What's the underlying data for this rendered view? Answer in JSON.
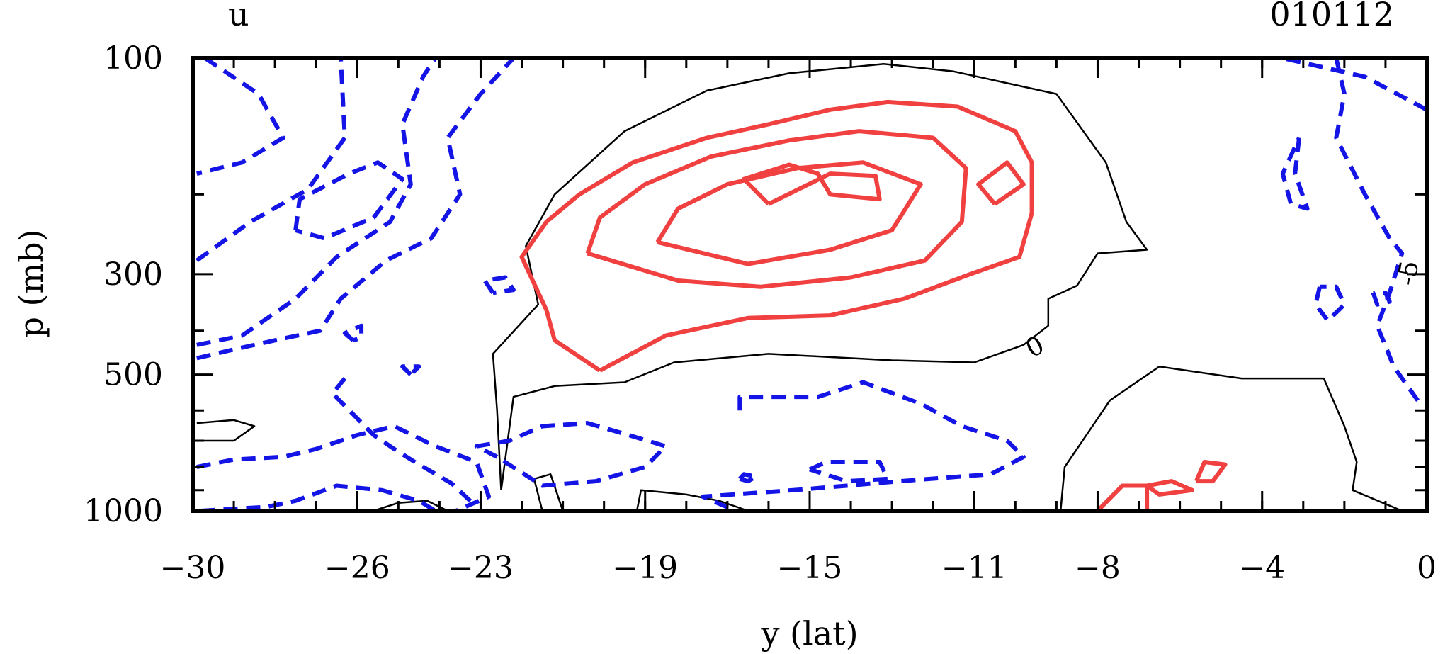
{
  "chart_data": {
    "type": "contour",
    "variable": "u",
    "date_label": "010112",
    "xlabel": "y (lat)",
    "ylabel": "p (mb)",
    "xlim": [
      -30,
      0
    ],
    "ylim": [
      1000,
      100
    ],
    "y_scale": "log",
    "x_ticks": [
      "-30",
      "-26",
      "-23",
      "-19",
      "-15",
      "-11",
      "-8",
      "-4",
      "0"
    ],
    "y_ticks": [
      "100",
      "300",
      "500",
      "1000"
    ],
    "contour_labels": [
      "0",
      "-5"
    ],
    "styles": {
      "positive": {
        "color": "#f04040",
        "dash": "solid"
      },
      "zero": {
        "color": "#000000",
        "dash": "solid"
      },
      "negative": {
        "color": "#1414e6",
        "dash": "dashed"
      }
    },
    "contours": [
      {
        "sign": "zero",
        "points": [
          [
            -22.5,
            900
          ],
          [
            -22.6,
            600
          ],
          [
            -22.7,
            450
          ],
          [
            -21.6,
            350
          ],
          [
            -21.9,
            260
          ],
          [
            -21.2,
            200
          ],
          [
            -19.5,
            145
          ],
          [
            -17.5,
            118
          ],
          [
            -15.5,
            108
          ],
          [
            -13.2,
            103
          ],
          [
            -11.5,
            107
          ],
          [
            -9,
            120
          ],
          [
            -7.8,
            170
          ],
          [
            -7.3,
            230
          ],
          [
            -6.8,
            265
          ],
          [
            -8,
            270
          ],
          [
            -8.5,
            318
          ],
          [
            -9.2,
            340
          ],
          [
            -9.2,
            390
          ],
          [
            -9.8,
            430
          ],
          [
            -11,
            470
          ],
          [
            -13,
            465
          ],
          [
            -16,
            450
          ],
          [
            -18.3,
            470
          ],
          [
            -19.5,
            520
          ],
          [
            -21.2,
            530
          ],
          [
            -22.2,
            560
          ],
          [
            -22.5,
            900
          ]
        ]
      },
      {
        "sign": "zero",
        "points": [
          [
            -8.9,
            1000
          ],
          [
            -8.8,
            800
          ],
          [
            -7.7,
            570
          ],
          [
            -6.5,
            480
          ],
          [
            -4.5,
            510
          ],
          [
            -2.5,
            510
          ],
          [
            -2,
            650
          ],
          [
            -1.7,
            780
          ],
          [
            -1.8,
            900
          ],
          [
            -0.6,
            1000
          ]
        ]
      },
      {
        "sign": "zero",
        "points": [
          [
            -29.9,
            640
          ],
          [
            -29,
            630
          ],
          [
            -28.5,
            650
          ],
          [
            -29,
            700
          ],
          [
            -29.9,
            700
          ]
        ]
      },
      {
        "sign": "zero",
        "points": [
          [
            -21.5,
            1000
          ],
          [
            -21.7,
            850
          ],
          [
            -21.3,
            830
          ],
          [
            -21,
            1000
          ]
        ]
      },
      {
        "sign": "zero",
        "points": [
          [
            -19.2,
            1000
          ],
          [
            -19.1,
            900
          ],
          [
            -18,
            920
          ],
          [
            -17.2,
            950
          ],
          [
            -16.5,
            1000
          ]
        ]
      },
      {
        "sign": "zero",
        "points": [
          [
            -25.6,
            1000
          ],
          [
            -25,
            960
          ],
          [
            -24.3,
            950
          ],
          [
            -23.8,
            1000
          ]
        ]
      },
      {
        "sign": "positive",
        "points": [
          [
            -20.1,
            490
          ],
          [
            -21.2,
            420
          ],
          [
            -21.4,
            360
          ],
          [
            -22,
            275
          ],
          [
            -21.4,
            230
          ],
          [
            -20.6,
            200
          ],
          [
            -19.3,
            170
          ],
          [
            -17.5,
            150
          ],
          [
            -16,
            140
          ],
          [
            -14.5,
            130
          ],
          [
            -13.1,
            125
          ],
          [
            -11.4,
            128
          ],
          [
            -10,
            145
          ],
          [
            -9.6,
            170
          ],
          [
            -9.6,
            220
          ],
          [
            -9.9,
            275
          ],
          [
            -11.1,
            300
          ],
          [
            -12.7,
            340
          ],
          [
            -14.5,
            370
          ],
          [
            -16.5,
            375
          ],
          [
            -18.5,
            410
          ],
          [
            -20.1,
            490
          ]
        ]
      },
      {
        "sign": "positive",
        "points": [
          [
            -20.4,
            270
          ],
          [
            -20.1,
            225
          ],
          [
            -19,
            190
          ],
          [
            -17.4,
            165
          ],
          [
            -15.5,
            152
          ],
          [
            -13.8,
            145
          ],
          [
            -12,
            150
          ],
          [
            -11.2,
            175
          ],
          [
            -11.3,
            230
          ],
          [
            -12.2,
            280
          ],
          [
            -14,
            305
          ],
          [
            -16.2,
            320
          ],
          [
            -18.2,
            310
          ],
          [
            -20.4,
            270
          ]
        ]
      },
      {
        "sign": "positive",
        "points": [
          [
            -18.7,
            255
          ],
          [
            -18.2,
            215
          ],
          [
            -17,
            190
          ],
          [
            -15.3,
            175
          ],
          [
            -13.7,
            170
          ],
          [
            -12.3,
            190
          ],
          [
            -13,
            240
          ],
          [
            -14.5,
            265
          ],
          [
            -16.5,
            285
          ],
          [
            -18.7,
            255
          ]
        ]
      },
      {
        "sign": "positive",
        "points": [
          [
            -16,
            210
          ],
          [
            -16.6,
            185
          ],
          [
            -15.5,
            172
          ],
          [
            -14.8,
            180
          ],
          [
            -14.5,
            200
          ],
          [
            -13.3,
            205
          ],
          [
            -13.4,
            182
          ],
          [
            -14.5,
            180
          ],
          [
            -16,
            210
          ]
        ]
      },
      {
        "sign": "positive",
        "points": [
          [
            -10.5,
            210
          ],
          [
            -10.9,
            190
          ],
          [
            -10.2,
            170
          ],
          [
            -9.8,
            190
          ],
          [
            -10.5,
            210
          ]
        ]
      },
      {
        "sign": "positive",
        "points": [
          [
            -8,
            1000
          ],
          [
            -7.4,
            880
          ],
          [
            -6.8,
            880
          ],
          [
            -6.8,
            1000
          ]
        ]
      },
      {
        "sign": "positive",
        "points": [
          [
            -6.8,
            880
          ],
          [
            -6.2,
            860
          ],
          [
            -5.7,
            900
          ],
          [
            -6.5,
            920
          ],
          [
            -6.8,
            880
          ]
        ]
      },
      {
        "sign": "positive",
        "points": [
          [
            -5.6,
            860
          ],
          [
            -5.4,
            780
          ],
          [
            -4.9,
            790
          ],
          [
            -5.2,
            860
          ],
          [
            -5.6,
            860
          ]
        ]
      },
      {
        "sign": "negative",
        "points": [
          [
            -29.7,
            100
          ],
          [
            -28.4,
            120
          ],
          [
            -27.8,
            150
          ],
          [
            -28.8,
            170
          ],
          [
            -29.9,
            180
          ]
        ]
      },
      {
        "sign": "negative",
        "points": [
          [
            -29.9,
            280
          ],
          [
            -28.6,
            230
          ],
          [
            -27.2,
            195
          ],
          [
            -26.3,
            150
          ],
          [
            -26.4,
            100
          ]
        ]
      },
      {
        "sign": "negative",
        "points": [
          [
            -29.9,
            430
          ],
          [
            -28.8,
            410
          ],
          [
            -27.5,
            340
          ],
          [
            -26.5,
            275
          ],
          [
            -25.2,
            230
          ],
          [
            -24.7,
            190
          ],
          [
            -24.9,
            140
          ],
          [
            -24.4,
            110
          ],
          [
            -24.1,
            100
          ]
        ]
      },
      {
        "sign": "negative",
        "points": [
          [
            -29.9,
            460
          ],
          [
            -29,
            440
          ],
          [
            -28,
            420
          ],
          [
            -26.9,
            400
          ],
          [
            -26.4,
            340
          ],
          [
            -25.3,
            280
          ],
          [
            -24.2,
            250
          ],
          [
            -23.5,
            200
          ],
          [
            -23.8,
            150
          ],
          [
            -23,
            120
          ],
          [
            -22.2,
            100
          ]
        ]
      },
      {
        "sign": "negative",
        "points": [
          [
            -27.5,
            240
          ],
          [
            -27.4,
            205
          ],
          [
            -26.2,
            180
          ],
          [
            -25.5,
            170
          ],
          [
            -24.9,
            185
          ],
          [
            -25.6,
            225
          ],
          [
            -26.8,
            250
          ],
          [
            -27.5,
            240
          ]
        ]
      },
      {
        "sign": "negative",
        "points": [
          [
            -29.9,
            800
          ],
          [
            -29,
            770
          ],
          [
            -27.8,
            760
          ],
          [
            -27,
            730
          ],
          [
            -26,
            680
          ],
          [
            -25.1,
            650
          ],
          [
            -24.1,
            720
          ],
          [
            -23.1,
            780
          ],
          [
            -22.8,
            930
          ],
          [
            -23.6,
            1000
          ]
        ]
      },
      {
        "sign": "negative",
        "points": [
          [
            -26.3,
            510
          ],
          [
            -26.6,
            550
          ],
          [
            -25.6,
            680
          ],
          [
            -25.1,
            730
          ],
          [
            -24.6,
            780
          ],
          [
            -23.7,
            870
          ],
          [
            -23.1,
            980
          ]
        ]
      },
      {
        "sign": "negative",
        "points": [
          [
            -29.8,
            1000
          ],
          [
            -28.2,
            980
          ],
          [
            -27.5,
            950
          ],
          [
            -26.5,
            880
          ],
          [
            -25.4,
            900
          ],
          [
            -24.5,
            950
          ],
          [
            -24.1,
            1000
          ]
        ]
      },
      {
        "sign": "negative",
        "points": [
          [
            -22.7,
            330
          ],
          [
            -22.9,
            310
          ],
          [
            -22.4,
            305
          ],
          [
            -22.2,
            325
          ],
          [
            -22.7,
            330
          ]
        ]
      },
      {
        "sign": "negative",
        "points": [
          [
            -26.1,
            420
          ],
          [
            -26.3,
            405
          ],
          [
            -25.9,
            390
          ],
          [
            -25.9,
            415
          ],
          [
            -26.1,
            420
          ]
        ]
      },
      {
        "sign": "negative",
        "points": [
          [
            -24.7,
            500
          ],
          [
            -24.9,
            480
          ],
          [
            -24.5,
            480
          ],
          [
            -24.7,
            500
          ]
        ]
      },
      {
        "sign": "negative",
        "points": [
          [
            -22.6,
            760
          ],
          [
            -23.1,
            720
          ],
          [
            -22.3,
            700
          ],
          [
            -21.5,
            650
          ],
          [
            -20.4,
            640
          ],
          [
            -19.4,
            680
          ],
          [
            -18.5,
            720
          ],
          [
            -19,
            800
          ],
          [
            -20.2,
            860
          ],
          [
            -21.5,
            880
          ],
          [
            -22.6,
            760
          ]
        ]
      },
      {
        "sign": "negative",
        "points": [
          [
            -16.7,
            600
          ],
          [
            -16.7,
            560
          ],
          [
            -14.8,
            560
          ],
          [
            -13.7,
            520
          ],
          [
            -12.3,
            580
          ],
          [
            -11.3,
            650
          ],
          [
            -10.2,
            700
          ],
          [
            -9.8,
            760
          ],
          [
            -10.6,
            830
          ],
          [
            -12.8,
            860
          ],
          [
            -15.4,
            900
          ],
          [
            -17.6,
            930
          ],
          [
            -16.8,
            1000
          ]
        ]
      },
      {
        "sign": "negative",
        "points": [
          [
            -15,
            810
          ],
          [
            -14.6,
            780
          ],
          [
            -13.3,
            780
          ],
          [
            -13.1,
            850
          ],
          [
            -14.1,
            860
          ],
          [
            -15,
            810
          ]
        ]
      },
      {
        "sign": "negative",
        "points": [
          [
            -16.7,
            850
          ],
          [
            -16.6,
            830
          ],
          [
            -16.3,
            840
          ],
          [
            -16.5,
            860
          ],
          [
            -16.7,
            850
          ]
        ]
      },
      {
        "sign": "negative",
        "points": [
          [
            -2.2,
            100
          ],
          [
            -2,
            120
          ],
          [
            -2.2,
            150
          ],
          [
            -1.5,
            200
          ],
          [
            -0.9,
            250
          ],
          [
            -0.6,
            270
          ],
          [
            -0.9,
            330
          ],
          [
            -1.2,
            390
          ],
          [
            -0.8,
            480
          ],
          [
            -0.1,
            590
          ]
        ]
      },
      {
        "sign": "negative",
        "points": [
          [
            0,
            130
          ],
          [
            -1.5,
            110
          ],
          [
            -3.5,
            100
          ]
        ]
      },
      {
        "sign": "negative",
        "points": [
          [
            -3.1,
            150
          ],
          [
            -3.2,
            180
          ],
          [
            -2.9,
            215
          ],
          [
            -3.3,
            210
          ],
          [
            -3.5,
            180
          ],
          [
            -3.1,
            150
          ]
        ]
      },
      {
        "sign": "negative",
        "points": [
          [
            -2.6,
            320
          ],
          [
            -2.7,
            350
          ],
          [
            -2.4,
            380
          ],
          [
            -2,
            350
          ],
          [
            -2.2,
            320
          ],
          [
            -2.6,
            320
          ]
        ]
      },
      {
        "sign": "negative",
        "points": [
          [
            -1.3,
            330
          ],
          [
            -1.2,
            350
          ],
          [
            -0.9,
            345
          ],
          [
            -1,
            330
          ],
          [
            -1.3,
            330
          ]
        ]
      }
    ]
  }
}
